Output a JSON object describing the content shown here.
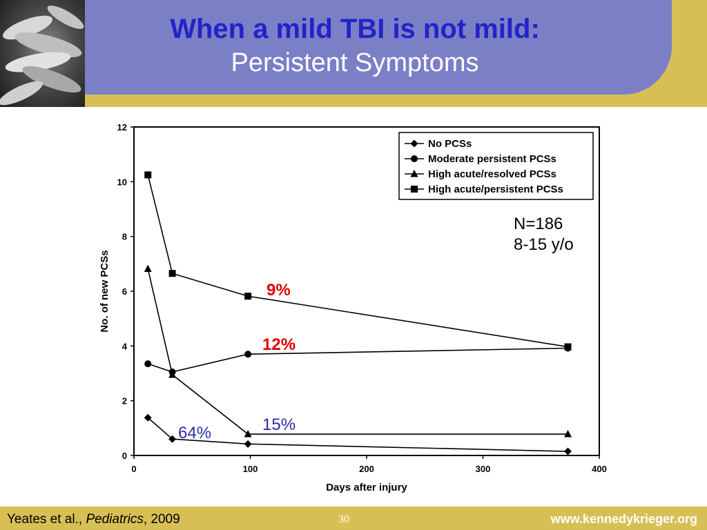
{
  "title": {
    "main": "When a mild TBI is not mild:",
    "sub": "Persistent Symptoms"
  },
  "chart_data": {
    "type": "line",
    "xlabel": "Days after injury",
    "ylabel": "No. of new PCSs",
    "xlim": [
      0,
      400
    ],
    "ylim": [
      0,
      12
    ],
    "xticks": [
      0,
      100,
      200,
      300,
      400
    ],
    "yticks": [
      0,
      2,
      4,
      6,
      8,
      10,
      12
    ],
    "grid": false,
    "legend_position": "top-right",
    "series": [
      {
        "name": "No PCSs",
        "marker": "diamond",
        "points": [
          [
            12,
            1.38
          ],
          [
            33,
            0.6
          ],
          [
            98,
            0.42
          ],
          [
            373,
            0.15
          ]
        ]
      },
      {
        "name": "Moderate persistent PCSs",
        "marker": "circle",
        "points": [
          [
            12,
            3.35
          ],
          [
            33,
            3.05
          ],
          [
            98,
            3.7
          ],
          [
            373,
            3.92
          ]
        ]
      },
      {
        "name": "High acute/resolved PCSs",
        "marker": "triangle",
        "points": [
          [
            12,
            6.82
          ],
          [
            33,
            2.95
          ],
          [
            98,
            0.78
          ],
          [
            373,
            0.78
          ]
        ]
      },
      {
        "name": "High acute/persistent PCSs",
        "marker": "square",
        "points": [
          [
            12,
            10.25
          ],
          [
            33,
            6.65
          ],
          [
            98,
            5.82
          ],
          [
            373,
            3.97
          ]
        ]
      }
    ]
  },
  "annotations": {
    "sample_size": "N=186",
    "age_range": "8-15 y/o",
    "pct_acute_persistent": "9%",
    "pct_moderate": "12%",
    "pct_acute_resolved": "15%",
    "pct_no_pcs": "64%"
  },
  "footer": {
    "citation_authors": "Yeates et al., ",
    "citation_journal": "Pediatrics",
    "citation_year": ", 2009",
    "page_number": "30",
    "url": "www.kennedykrieger.org"
  }
}
